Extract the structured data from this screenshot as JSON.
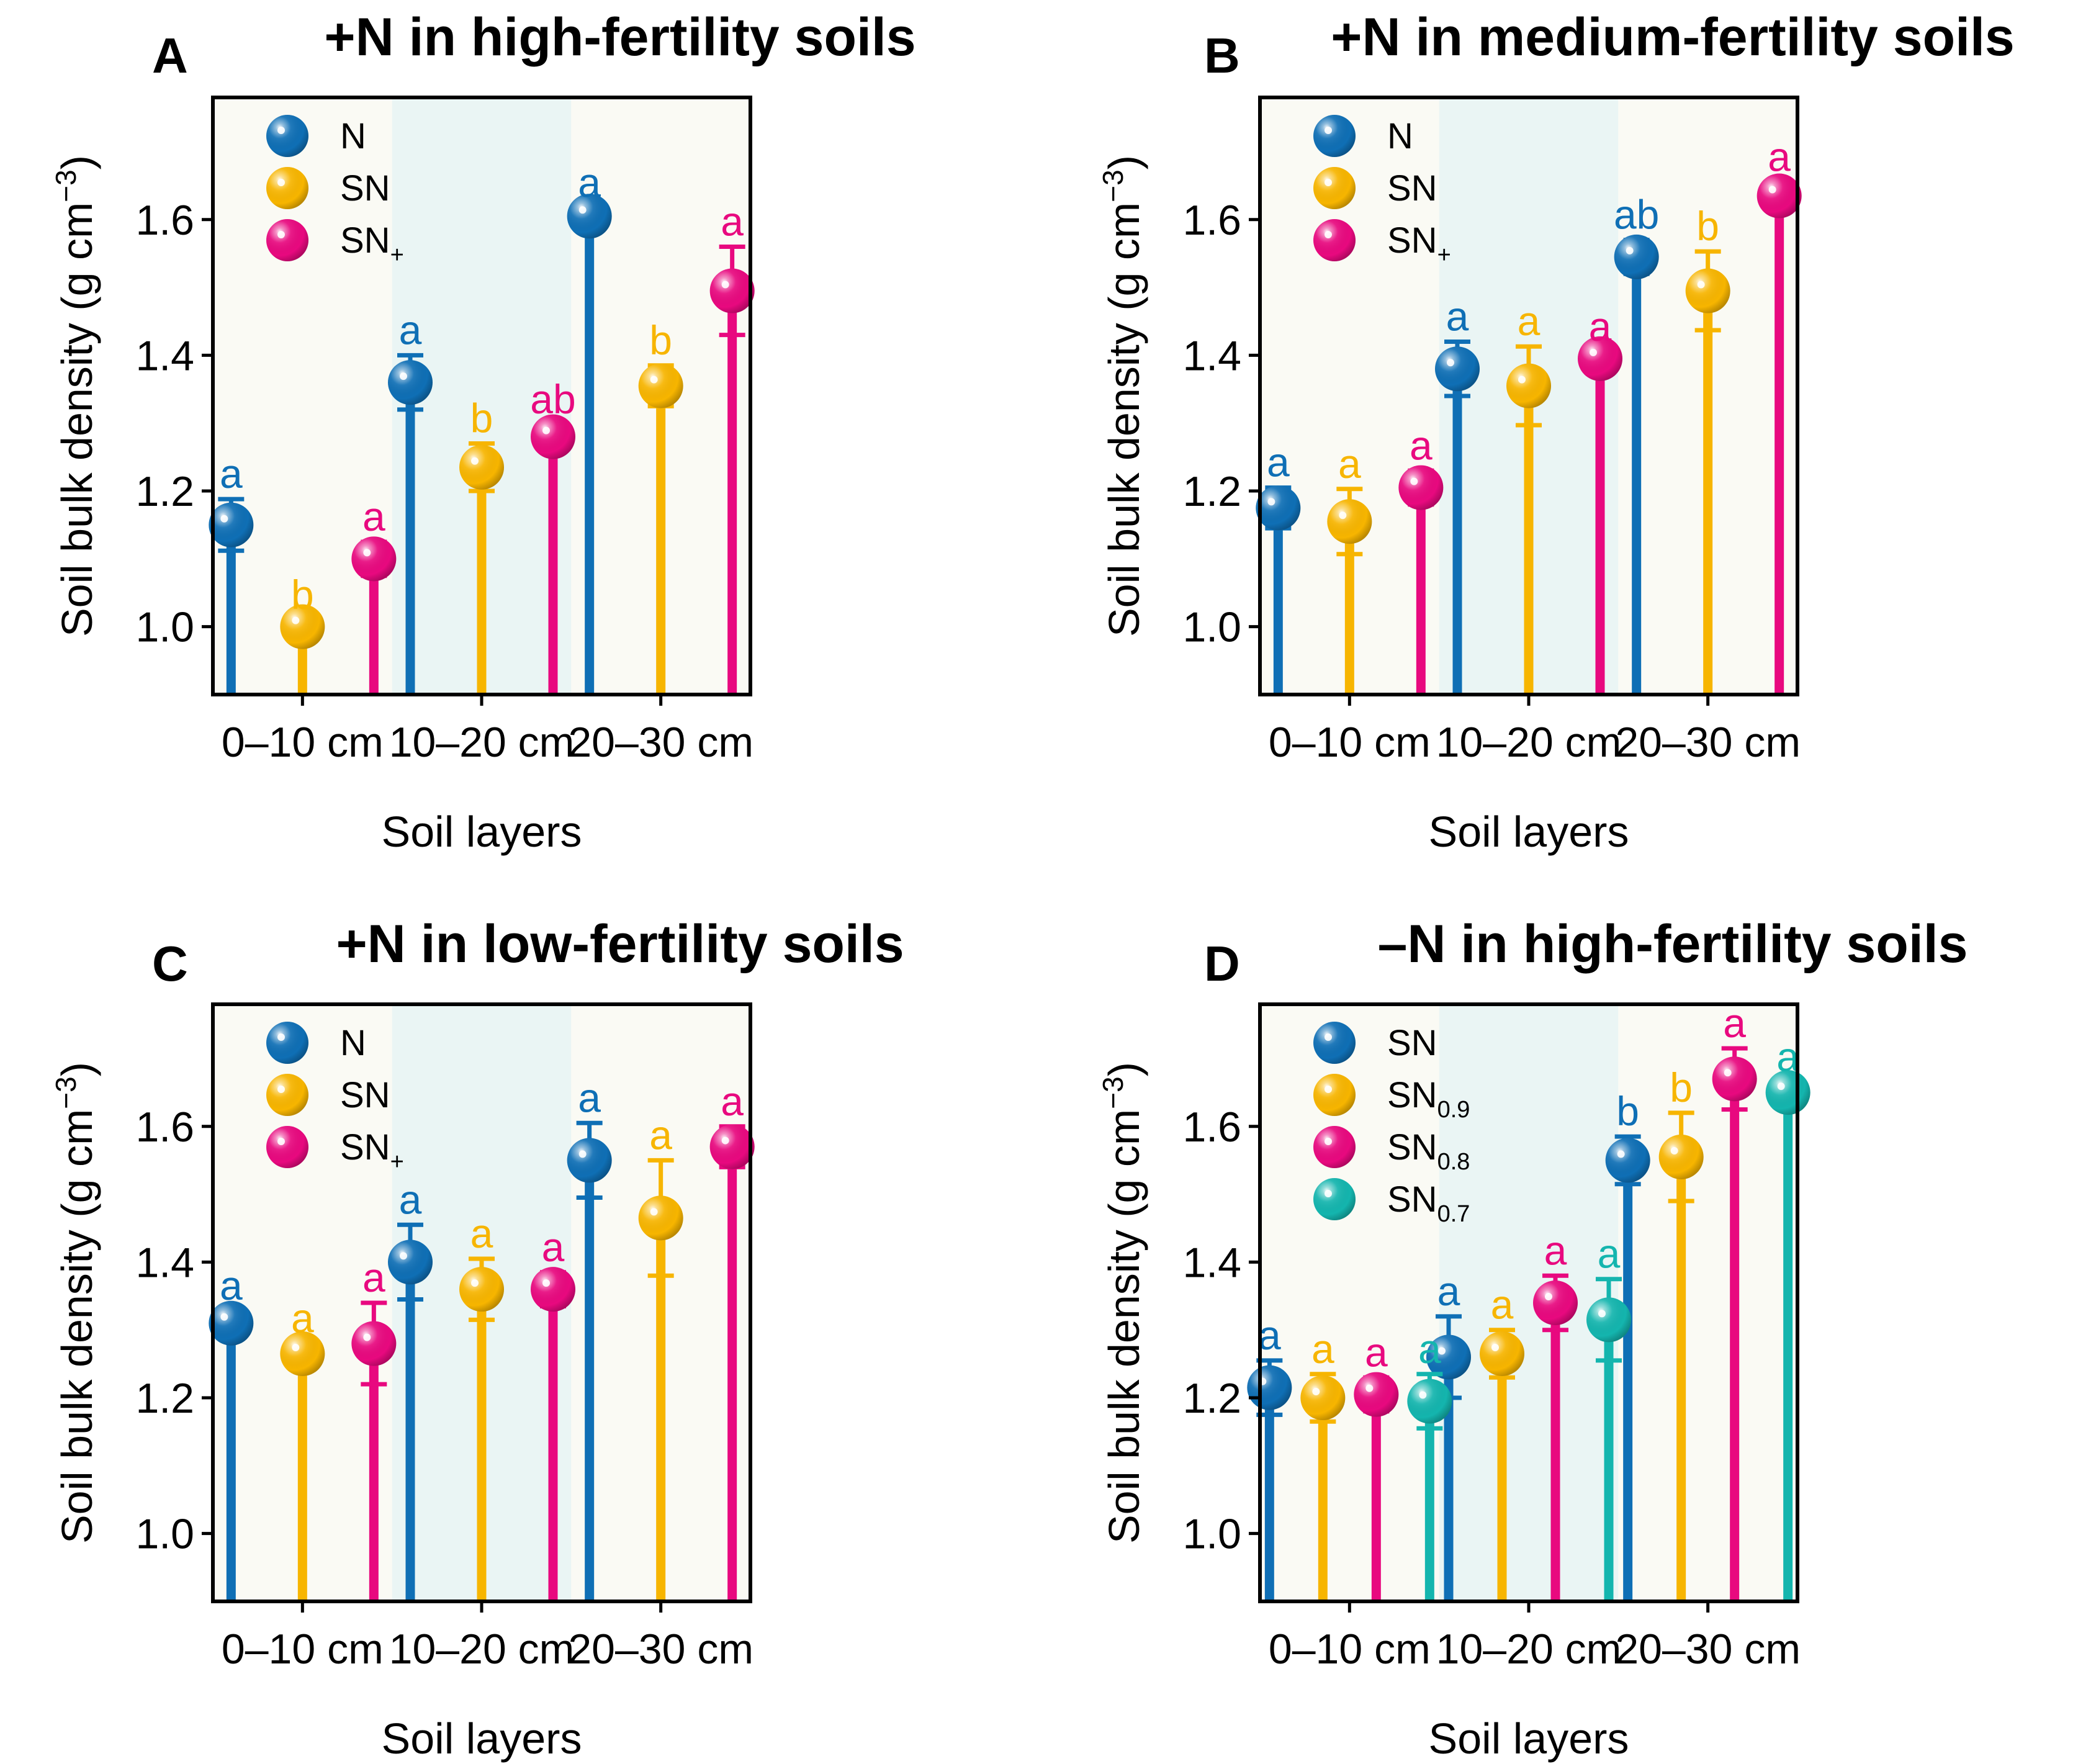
{
  "chart_data": [
    {
      "panel": "A",
      "title": "+N in high-fertility soils",
      "type": "lollipop-with-errorbars",
      "categories": [
        "0–10 cm",
        "10–20 cm",
        "20–30 cm"
      ],
      "xlabel": "Soil layers",
      "ylabel": "Soil bulk density (g cm",
      "ylabel_sup": "−3",
      "ylabel_close": ")",
      "ylim": [
        0.9,
        1.78
      ],
      "yticks": [
        1.0,
        1.2,
        1.4,
        1.6
      ],
      "ytick_labels": [
        "1.0",
        "1.2",
        "1.4",
        "1.6"
      ],
      "legend": [
        {
          "base": "N",
          "sub": "",
          "color": "#0F6FB5"
        },
        {
          "base": "SN",
          "sub": "",
          "color": "#F7B500"
        },
        {
          "base": "SN",
          "sub": "+",
          "color": "#E8097F"
        }
      ],
      "series": [
        {
          "name": "N",
          "color": "#0F6FB5",
          "values": [
            1.15,
            1.36,
            1.605
          ],
          "errors": [
            0.038,
            0.04,
            0.012
          ],
          "letters": [
            "a",
            "a",
            "a"
          ]
        },
        {
          "name": "SN",
          "color": "#F7B500",
          "values": [
            1.0,
            1.235,
            1.355
          ],
          "errors": [
            0.01,
            0.035,
            0.03
          ],
          "letters": [
            "b",
            "b",
            "b"
          ]
        },
        {
          "name": "SN+",
          "color": "#E8097F",
          "values": [
            1.1,
            1.28,
            1.495
          ],
          "errors": [
            0.025,
            0.018,
            0.065
          ],
          "letters": [
            "a",
            "ab",
            "a"
          ]
        }
      ]
    },
    {
      "panel": "B",
      "title": "+N in medium-fertility soils",
      "type": "lollipop-with-errorbars",
      "categories": [
        "0–10 cm",
        "10–20 cm",
        "20–30 cm"
      ],
      "xlabel": "Soil layers",
      "ylabel": "Soil bulk density (g cm",
      "ylabel_sup": "−3",
      "ylabel_close": ")",
      "ylim": [
        0.9,
        1.78
      ],
      "yticks": [
        1.0,
        1.2,
        1.4,
        1.6
      ],
      "ytick_labels": [
        "1.0",
        "1.2",
        "1.4",
        "1.6"
      ],
      "legend": [
        {
          "base": "N",
          "sub": "",
          "color": "#0F6FB5"
        },
        {
          "base": "SN",
          "sub": "",
          "color": "#F7B500"
        },
        {
          "base": "SN",
          "sub": "+",
          "color": "#E8097F"
        }
      ],
      "series": [
        {
          "name": "N",
          "color": "#0F6FB5",
          "values": [
            1.175,
            1.38,
            1.545
          ],
          "errors": [
            0.03,
            0.04,
            0.025
          ],
          "letters": [
            "a",
            "a",
            "ab"
          ]
        },
        {
          "name": "SN",
          "color": "#F7B500",
          "values": [
            1.155,
            1.355,
            1.495
          ],
          "errors": [
            0.048,
            0.058,
            0.058
          ],
          "letters": [
            "a",
            "a",
            "b"
          ]
        },
        {
          "name": "SN+",
          "color": "#E8097F",
          "values": [
            1.205,
            1.395,
            1.635
          ],
          "errors": [
            0.025,
            0.01,
            0.02
          ],
          "letters": [
            "a",
            "a",
            "a"
          ]
        }
      ]
    },
    {
      "panel": "C",
      "title": "+N in low-fertility soils",
      "type": "lollipop-with-errorbars",
      "categories": [
        "0–10 cm",
        "10–20 cm",
        "20–30 cm"
      ],
      "xlabel": "Soil layers",
      "ylabel": "Soil bulk density (g cm",
      "ylabel_sup": "−3",
      "ylabel_close": ")",
      "ylim": [
        0.9,
        1.78
      ],
      "yticks": [
        1.0,
        1.2,
        1.4,
        1.6
      ],
      "ytick_labels": [
        "1.0",
        "1.2",
        "1.4",
        "1.6"
      ],
      "legend": [
        {
          "base": "N",
          "sub": "",
          "color": "#0F6FB5"
        },
        {
          "base": "SN",
          "sub": "",
          "color": "#F7B500"
        },
        {
          "base": "SN",
          "sub": "+",
          "color": "#E8097F"
        }
      ],
      "series": [
        {
          "name": "N",
          "color": "#0F6FB5",
          "values": [
            1.31,
            1.4,
            1.55
          ],
          "errors": [
            0.018,
            0.055,
            0.055
          ],
          "letters": [
            "a",
            "a",
            "a"
          ]
        },
        {
          "name": "SN",
          "color": "#F7B500",
          "values": [
            1.265,
            1.36,
            1.465
          ],
          "errors": [
            0.015,
            0.045,
            0.085
          ],
          "letters": [
            "a",
            "a",
            "a"
          ]
        },
        {
          "name": "SN+",
          "color": "#E8097F",
          "values": [
            1.28,
            1.36,
            1.57
          ],
          "errors": [
            0.06,
            0.025,
            0.03
          ],
          "letters": [
            "a",
            "a",
            "a"
          ]
        }
      ]
    },
    {
      "panel": "D",
      "title": "–N in high-fertility soils",
      "type": "lollipop-with-errorbars",
      "categories": [
        "0–10 cm",
        "10–20 cm",
        "20–30 cm"
      ],
      "xlabel": "Soil layers",
      "ylabel": "Soil bulk density (g cm",
      "ylabel_sup": "−3",
      "ylabel_close": ")",
      "ylim": [
        0.9,
        1.78
      ],
      "yticks": [
        1.0,
        1.2,
        1.4,
        1.6
      ],
      "ytick_labels": [
        "1.0",
        "1.2",
        "1.4",
        "1.6"
      ],
      "legend": [
        {
          "base": "SN",
          "sub": "",
          "color": "#0F6FB5"
        },
        {
          "base": "SN",
          "sub": "0.9",
          "color": "#F7B500"
        },
        {
          "base": "SN",
          "sub": "0.8",
          "color": "#E8097F"
        },
        {
          "base": "SN",
          "sub": "0.7",
          "color": "#14B5AE"
        }
      ],
      "series": [
        {
          "name": "SN",
          "color": "#0F6FB5",
          "values": [
            1.215,
            1.26,
            1.55
          ],
          "errors": [
            0.04,
            0.06,
            0.035
          ],
          "letters": [
            "a",
            "a",
            "b"
          ]
        },
        {
          "name": "SN0.9",
          "color": "#F7B500",
          "values": [
            1.2,
            1.265,
            1.555
          ],
          "errors": [
            0.035,
            0.035,
            0.065
          ],
          "letters": [
            "a",
            "a",
            "b"
          ]
        },
        {
          "name": "SN0.8",
          "color": "#E8097F",
          "values": [
            1.205,
            1.34,
            1.67
          ],
          "errors": [
            0.025,
            0.04,
            0.045
          ],
          "letters": [
            "a",
            "a",
            "a"
          ]
        },
        {
          "name": "SN0.7",
          "color": "#14B5AE",
          "values": [
            1.195,
            1.315,
            1.65
          ],
          "errors": [
            0.04,
            0.06,
            0.015
          ],
          "letters": [
            "a",
            "a",
            "a"
          ]
        }
      ]
    }
  ]
}
